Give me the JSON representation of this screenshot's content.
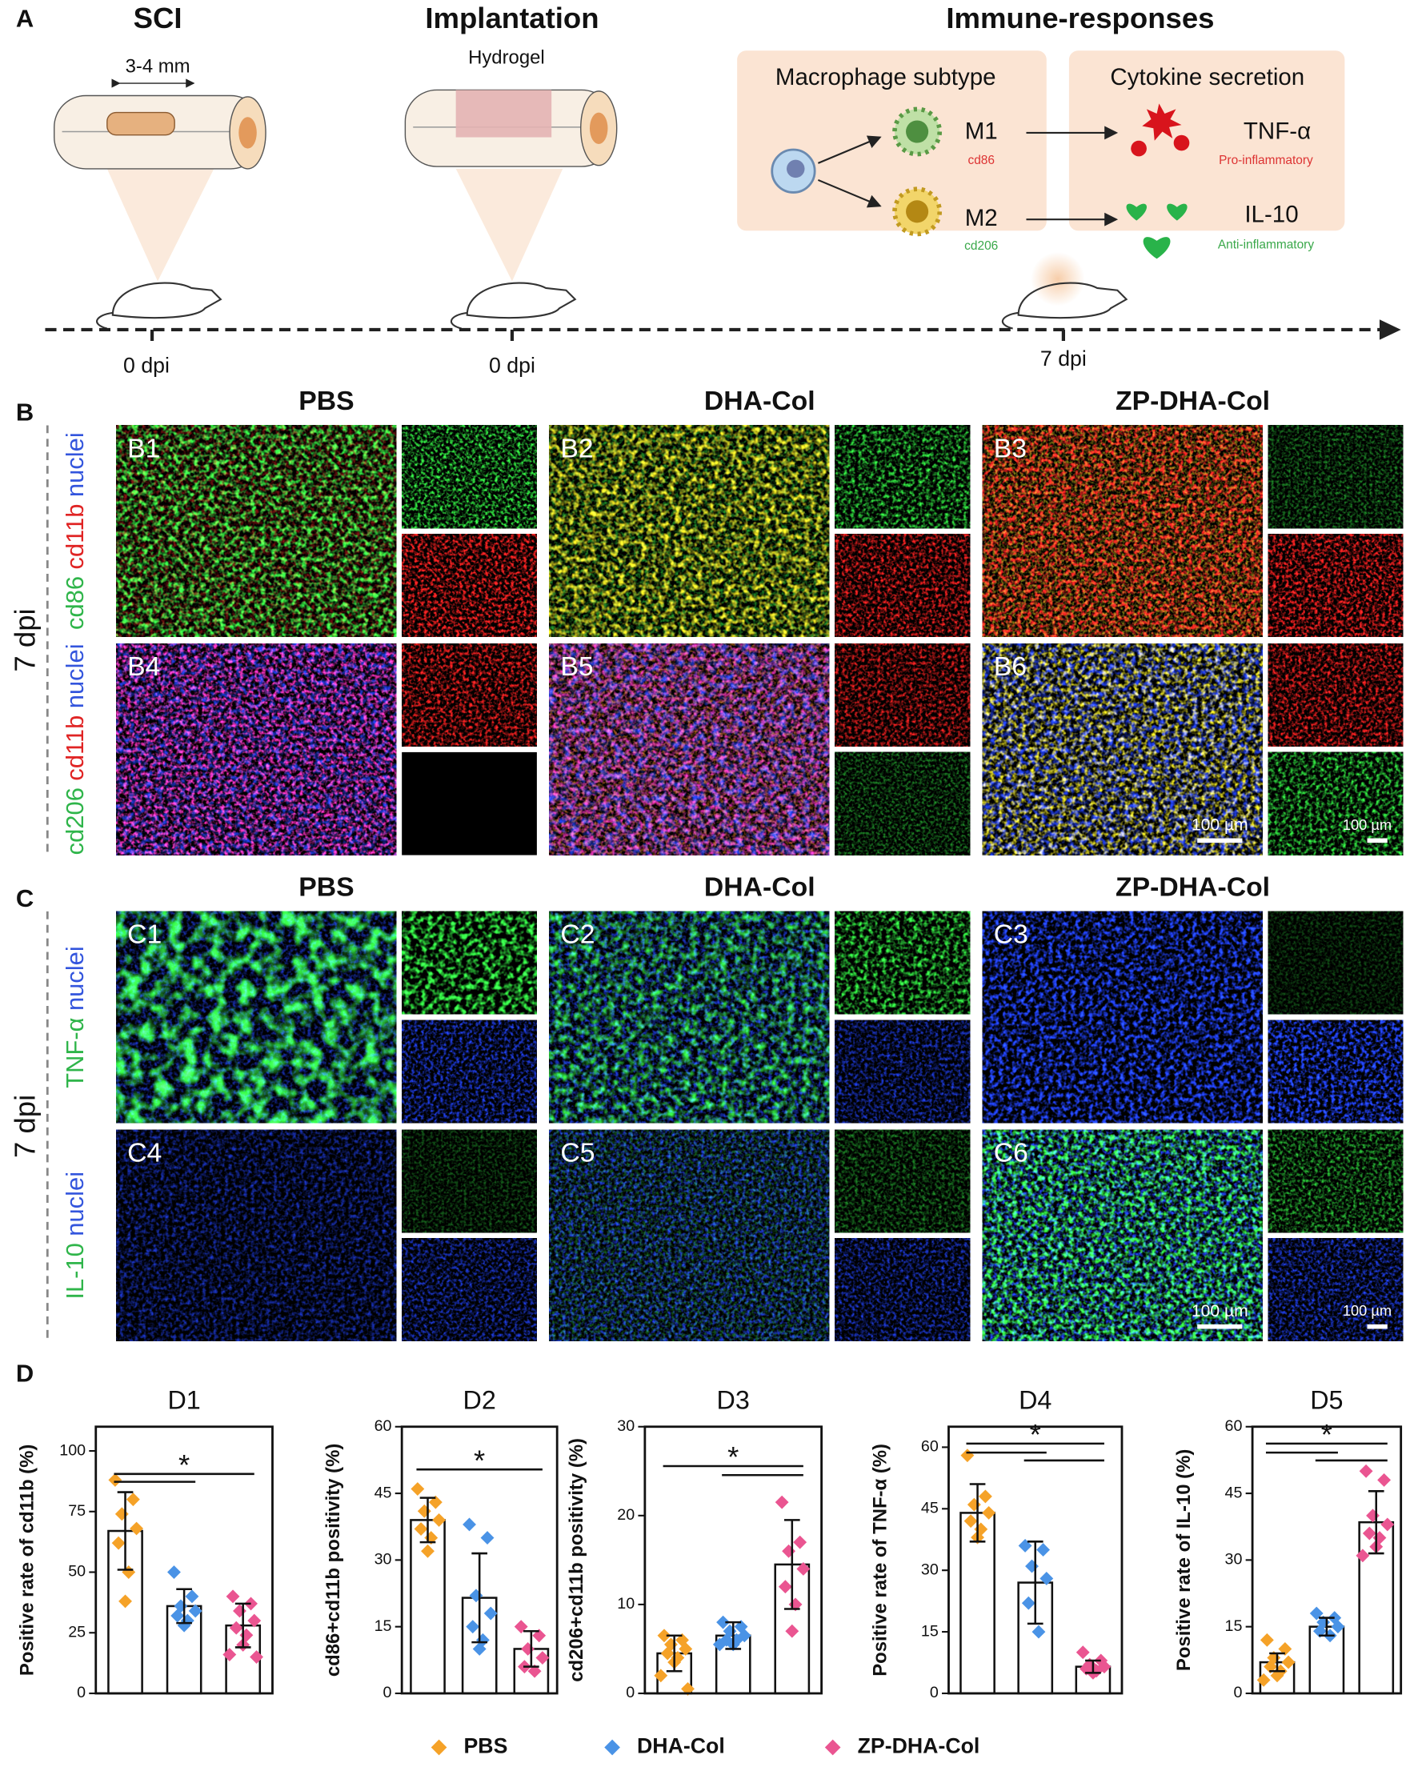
{
  "panel_a": {
    "label": "A",
    "stages": [
      {
        "title": "SCI",
        "annotation": "3-4 mm",
        "time": "0 dpi"
      },
      {
        "title": "Implantation",
        "annotation": "Hydrogel",
        "time": "0 dpi"
      },
      {
        "title": "Immune-responses",
        "time": "7 dpi"
      }
    ],
    "macrophage_box": "Macrophage subtype",
    "cytokine_box": "Cytokine secretion",
    "subtypes": [
      {
        "name": "M1",
        "marker": "cd86",
        "cytokine": "TNF-α",
        "effect": "Pro-inflammatory"
      },
      {
        "name": "M2",
        "marker": "cd206",
        "cytokine": "IL-10",
        "effect": "Anti-inflammatory"
      }
    ]
  },
  "panel_b": {
    "label": "B",
    "columns": [
      "PBS",
      "DHA-Col",
      "ZP-DHA-Col"
    ],
    "time": "7 dpi",
    "scale_bar": "100 µm",
    "rows": [
      {
        "markers": [
          {
            "text": "cd86",
            "color": "#2fb54a"
          },
          {
            "text": "cd11b",
            "color": "#e02424"
          },
          {
            "text": "nuclei",
            "color": "#3355dd"
          }
        ],
        "panels": [
          "B1",
          "B2",
          "B3"
        ]
      },
      {
        "markers": [
          {
            "text": "cd206",
            "color": "#2fb54a"
          },
          {
            "text": "cd11b",
            "color": "#e02424"
          },
          {
            "text": "nuclei",
            "color": "#3355dd"
          }
        ],
        "panels": [
          "B4",
          "B5",
          "B6"
        ]
      }
    ]
  },
  "panel_c": {
    "label": "C",
    "columns": [
      "PBS",
      "DHA-Col",
      "ZP-DHA-Col"
    ],
    "time": "7 dpi",
    "scale_bar": "100 µm",
    "rows": [
      {
        "markers": [
          {
            "text": "TNF-α",
            "color": "#2fb54a"
          },
          {
            "text": "nuclei",
            "color": "#3355dd"
          }
        ],
        "panels": [
          "C1",
          "C2",
          "C3"
        ]
      },
      {
        "markers": [
          {
            "text": "IL-10",
            "color": "#2fb54a"
          },
          {
            "text": "nuclei",
            "color": "#3355dd"
          }
        ],
        "panels": [
          "C4",
          "C5",
          "C6"
        ]
      }
    ]
  },
  "panel_d": {
    "label": "D"
  },
  "legend": [
    {
      "name": "PBS",
      "color": "#f5a228"
    },
    {
      "name": "DHA-Col",
      "color": "#4a93e6"
    },
    {
      "name": "ZP-DHA-Col",
      "color": "#ea5591"
    }
  ],
  "chart_data": [
    {
      "type": "bar",
      "title": "D1",
      "y_label": "Positive rate of cd11b (%)",
      "ylim": [
        0,
        110
      ],
      "yticks": [
        0,
        25,
        50,
        75,
        100
      ],
      "annotation": "*",
      "series": [
        {
          "values": [
            67
          ],
          "errors": [
            16
          ],
          "points": [
            88,
            80,
            74,
            68,
            62,
            50,
            38
          ]
        },
        {
          "values": [
            36
          ],
          "errors": [
            7
          ],
          "points": [
            50,
            40,
            36,
            34,
            32,
            30,
            28
          ]
        },
        {
          "values": [
            28
          ],
          "errors": [
            9
          ],
          "points": [
            40,
            37,
            34,
            30,
            27,
            24,
            20,
            16,
            15
          ]
        }
      ]
    },
    {
      "type": "bar",
      "title": "D2",
      "y_label": "cd86+cd11b positivity (%)",
      "ylim": [
        0,
        60
      ],
      "yticks": [
        0,
        15,
        30,
        45,
        60
      ],
      "annotation": "*",
      "series": [
        {
          "values": [
            39
          ],
          "errors": [
            5
          ],
          "points": [
            46,
            43,
            41,
            39,
            37,
            35,
            32
          ]
        },
        {
          "values": [
            21.5
          ],
          "errors": [
            10
          ],
          "points": [
            38,
            35,
            22,
            18,
            15,
            12,
            10
          ]
        },
        {
          "values": [
            10
          ],
          "errors": [
            4
          ],
          "points": [
            15,
            13,
            10,
            8,
            6,
            5
          ]
        }
      ]
    },
    {
      "type": "bar",
      "title": "D3",
      "y_label": "cd206+cd11b positivity (%)",
      "ylim": [
        0,
        30
      ],
      "yticks": [
        0,
        10,
        20,
        30
      ],
      "annotation": "*",
      "series": [
        {
          "values": [
            4.5
          ],
          "errors": [
            2
          ],
          "points": [
            6.5,
            6,
            5.5,
            5,
            4.5,
            4,
            3.5,
            2,
            0.5
          ]
        },
        {
          "values": [
            6.5
          ],
          "errors": [
            1.5
          ],
          "points": [
            8,
            7.5,
            7,
            6.5,
            6,
            6,
            5.5,
            5.5
          ]
        },
        {
          "values": [
            14.5
          ],
          "errors": [
            5
          ],
          "points": [
            21.5,
            17,
            16,
            14,
            12,
            10,
            7
          ]
        }
      ]
    },
    {
      "type": "bar",
      "title": "D4",
      "y_label": "Positive rate of TNF-α (%)",
      "ylim": [
        0,
        65
      ],
      "yticks": [
        0,
        15,
        30,
        45,
        60
      ],
      "annotation": "*",
      "series": [
        {
          "values": [
            44
          ],
          "errors": [
            7
          ],
          "points": [
            58,
            48,
            46,
            44,
            42,
            40,
            38
          ]
        },
        {
          "values": [
            27
          ],
          "errors": [
            10
          ],
          "points": [
            36,
            35,
            31,
            28,
            22,
            15
          ]
        },
        {
          "values": [
            6.5
          ],
          "errors": [
            1.5
          ],
          "points": [
            10,
            8,
            7,
            6.5,
            6,
            5.5,
            5
          ]
        }
      ]
    },
    {
      "type": "bar",
      "title": "D5",
      "y_label": "Positive rate of IL-10 (%)",
      "ylim": [
        0,
        60
      ],
      "yticks": [
        0,
        15,
        30,
        45,
        60
      ],
      "annotation": "*",
      "series": [
        {
          "values": [
            7
          ],
          "errors": [
            2
          ],
          "points": [
            12,
            10,
            8,
            7,
            6,
            5,
            4,
            3
          ]
        },
        {
          "values": [
            15
          ],
          "errors": [
            2
          ],
          "points": [
            18,
            17,
            16,
            15,
            14,
            13
          ]
        },
        {
          "values": [
            38.5
          ],
          "errors": [
            7
          ],
          "points": [
            50,
            48,
            40,
            38,
            36,
            35,
            33,
            31
          ]
        }
      ]
    }
  ]
}
